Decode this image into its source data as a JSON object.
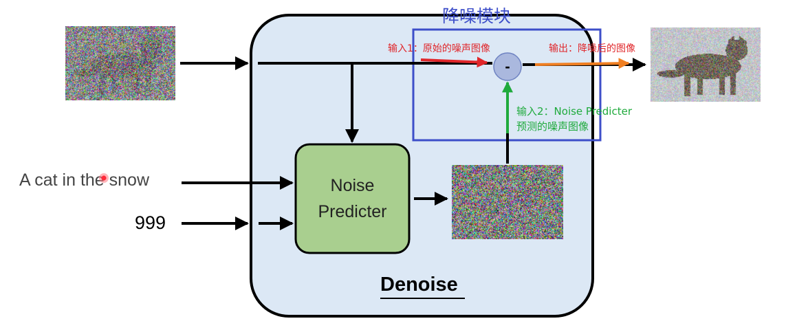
{
  "denoise_block": {
    "title": "降噪模块",
    "input1_label": "输入1：原始的噪声图像",
    "output_label": "输出：降噪后的图像",
    "input2_label_line1": "输入2：Noise Predicter",
    "input2_label_line2": "预测的噪声图像",
    "minus_symbol": "-"
  },
  "inputs": {
    "text_prompt": "A cat in the snow",
    "step_number": "999"
  },
  "predictor": {
    "label_line1": "Noise",
    "label_line2": "Predicter"
  },
  "container": {
    "label": "Denoise"
  },
  "colors": {
    "container_fill": "#dce8f5",
    "predictor_fill": "#a9cf8f",
    "block_border": "#3d4ec9",
    "title_color": "#3d4ec9",
    "input1_color": "#e0262a",
    "output_color": "#f07f22",
    "input2_color": "#1faa3c",
    "minus_circle": "#aab8de"
  }
}
